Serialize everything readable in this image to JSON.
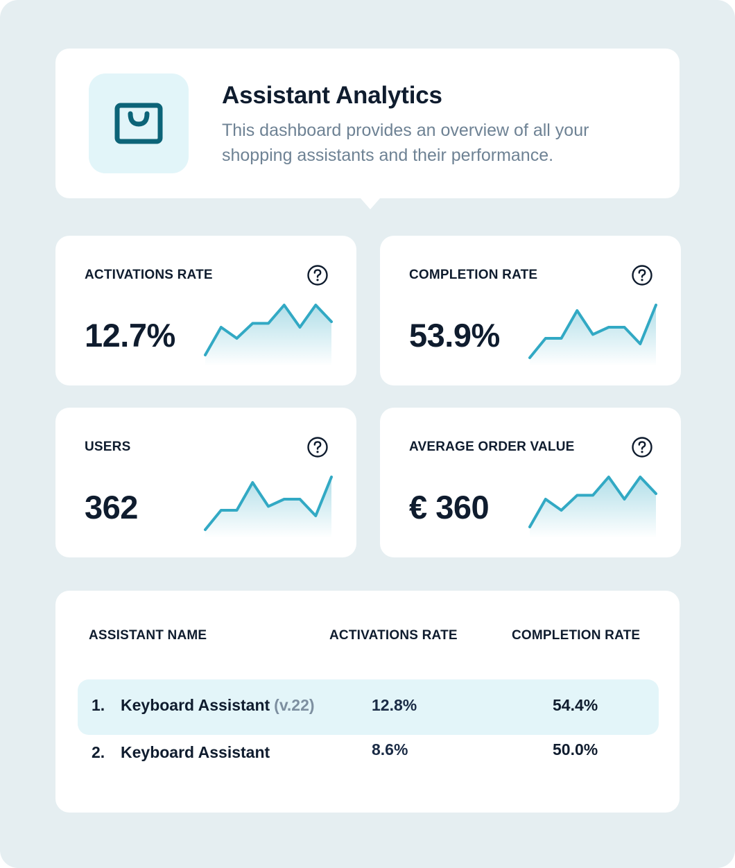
{
  "header": {
    "icon": "shopping-bag-icon",
    "title": "Assistant Analytics",
    "description": "This dashboard provides an overview of all your shopping assistants and their performance."
  },
  "metrics": [
    {
      "label": "ACTIVATIONS RATE",
      "value": "12.7%",
      "help_icon": "help-icon",
      "trend": [
        0.05,
        0.55,
        0.35,
        0.62,
        0.62,
        0.95,
        0.55,
        0.95,
        0.65
      ]
    },
    {
      "label": "COMPLETION RATE",
      "value": "53.9%",
      "help_icon": "help-icon",
      "trend": [
        0.0,
        0.35,
        0.35,
        0.85,
        0.42,
        0.55,
        0.55,
        0.25,
        0.95
      ]
    },
    {
      "label": "USERS",
      "value": "362",
      "help_icon": "help-icon",
      "trend": [
        0.0,
        0.35,
        0.35,
        0.85,
        0.42,
        0.55,
        0.55,
        0.25,
        0.95
      ]
    },
    {
      "label": "AVERAGE ORDER VALUE",
      "value": "€ 360",
      "help_icon": "help-icon",
      "trend": [
        0.05,
        0.55,
        0.35,
        0.62,
        0.62,
        0.95,
        0.55,
        0.95,
        0.65
      ]
    }
  ],
  "table": {
    "headers": {
      "name": "ASSISTANT NAME",
      "activations": "ACTIVATIONS RATE",
      "completion": "COMPLETION RATE"
    },
    "rows": [
      {
        "rank": "1.",
        "name": "Keyboard Assistant",
        "version": "(v.22)",
        "activations": "12.8%",
        "completion": "54.4%"
      },
      {
        "rank": "2.",
        "name": "Keyboard Assistant",
        "activations": "8.6%",
        "completion": "50.0%"
      }
    ]
  },
  "colors": {
    "accent": "#32a9c4",
    "icon_dark": "#0c6478",
    "icon_bg": "#e2f5f9",
    "background": "#e5eef1",
    "text": "#0f1c2e",
    "muted": "#6e8294"
  }
}
